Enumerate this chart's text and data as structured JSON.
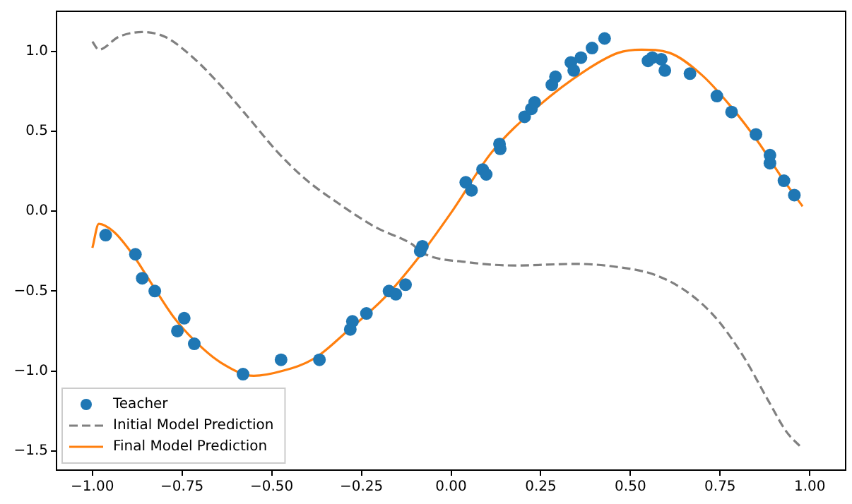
{
  "chart_data": {
    "type": "line",
    "xlim": [
      -1.1,
      1.1
    ],
    "ylim": [
      -1.62,
      1.25
    ],
    "xticks": [
      {
        "value": -1,
        "label": "−1.00"
      },
      {
        "value": -0.75,
        "label": "−0.75"
      },
      {
        "value": -0.5,
        "label": "−0.50"
      },
      {
        "value": -0.25,
        "label": "−0.25"
      },
      {
        "value": 0,
        "label": "0.00"
      },
      {
        "value": 0.25,
        "label": "0.25"
      },
      {
        "value": 0.5,
        "label": "0.50"
      },
      {
        "value": 0.75,
        "label": "0.75"
      },
      {
        "value": 1,
        "label": "1.00"
      }
    ],
    "yticks": [
      {
        "value": -1.5,
        "label": "−1.5"
      },
      {
        "value": -1,
        "label": "−1.0"
      },
      {
        "value": -0.5,
        "label": "−0.5"
      },
      {
        "value": 0,
        "label": "0.0"
      },
      {
        "value": 0.5,
        "label": "0.5"
      },
      {
        "value": 1,
        "label": "1.0"
      }
    ],
    "grid": false,
    "legend": "bottom left",
    "series": [
      {
        "name": "Teacher",
        "type": "scatter",
        "marker": "circle",
        "color": "#1f77b4",
        "x": [
          -0.963,
          -0.88,
          -0.861,
          -0.826,
          -0.763,
          -0.744,
          -0.716,
          -0.58,
          -0.474,
          -0.367,
          -0.281,
          -0.275,
          -0.236,
          -0.173,
          -0.154,
          -0.127,
          -0.086,
          -0.08,
          0.041,
          0.057,
          0.088,
          0.098,
          0.135,
          0.137,
          0.205,
          0.224,
          0.233,
          0.281,
          0.291,
          0.334,
          0.342,
          0.362,
          0.393,
          0.428,
          0.549,
          0.561,
          0.586,
          0.596,
          0.666,
          0.741,
          0.782,
          0.85,
          0.889,
          0.889,
          0.928,
          0.957
        ],
        "values": [
          -0.15,
          -0.27,
          -0.42,
          -0.5,
          -0.75,
          -0.67,
          -0.83,
          -1.02,
          -0.93,
          -0.93,
          -0.74,
          -0.69,
          -0.64,
          -0.5,
          -0.52,
          -0.46,
          -0.25,
          -0.22,
          0.18,
          0.13,
          0.26,
          0.23,
          0.42,
          0.39,
          0.59,
          0.64,
          0.68,
          0.79,
          0.84,
          0.93,
          0.88,
          0.96,
          1.02,
          1.08,
          0.94,
          0.96,
          0.95,
          0.88,
          0.86,
          0.72,
          0.62,
          0.48,
          0.35,
          0.3,
          0.19,
          0.1
        ]
      },
      {
        "name": "Initial Model Prediction",
        "type": "line",
        "marker": "none",
        "line_style": "dashed",
        "color": "#808080",
        "x": [
          -1.0,
          -0.982,
          -0.927,
          -0.862,
          -0.797,
          -0.719,
          -0.64,
          -0.563,
          -0.484,
          -0.406,
          -0.315,
          -0.211,
          -0.107,
          -0.081,
          0.049,
          0.18,
          0.349,
          0.466,
          0.57,
          0.661,
          0.739,
          0.818,
          0.883,
          0.935,
          0.977
        ],
        "values": [
          1.06,
          1.01,
          1.09,
          1.12,
          1.09,
          0.96,
          0.78,
          0.58,
          0.37,
          0.2,
          0.05,
          -0.1,
          -0.21,
          -0.26,
          -0.32,
          -0.34,
          -0.33,
          -0.35,
          -0.4,
          -0.51,
          -0.67,
          -0.92,
          -1.18,
          -1.38,
          -1.48
        ]
      },
      {
        "name": "Final Model Prediction",
        "type": "line",
        "marker": "none",
        "line_style": "solid",
        "color": "#ff7f0e",
        "x": [
          -1.0,
          -0.982,
          -0.94,
          -0.888,
          -0.836,
          -0.771,
          -0.706,
          -0.64,
          -0.55,
          -0.471,
          -0.38,
          -0.289,
          -0.185,
          -0.094,
          0.0,
          0.114,
          0.245,
          0.375,
          0.466,
          0.531,
          0.609,
          0.7,
          0.778,
          0.857,
          0.922,
          0.98
        ],
        "values": [
          -0.23,
          -0.08,
          -0.13,
          -0.27,
          -0.45,
          -0.67,
          -0.83,
          -0.95,
          -1.03,
          -1.0,
          -0.92,
          -0.75,
          -0.54,
          -0.3,
          -0.01,
          0.37,
          0.66,
          0.88,
          0.99,
          1.01,
          0.99,
          0.85,
          0.66,
          0.43,
          0.21,
          0.03
        ]
      }
    ]
  }
}
